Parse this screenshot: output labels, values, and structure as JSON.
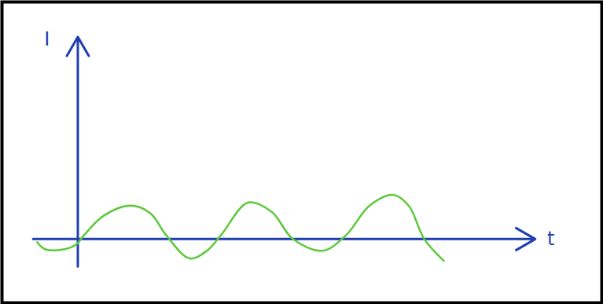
{
  "chart_data": {
    "type": "line",
    "x_label": "t",
    "y_label": "I",
    "x": [
      -52,
      -42,
      -17,
      -2,
      8,
      33,
      68,
      93,
      113,
      143,
      165,
      183,
      218,
      248,
      275,
      313,
      343,
      373,
      403,
      423,
      443,
      468
    ],
    "values": [
      -4,
      -13,
      -13,
      -7,
      5,
      30,
      43,
      33,
      5,
      -25,
      -15,
      5,
      47,
      35,
      0,
      -15,
      5,
      43,
      57,
      43,
      0,
      -28
    ],
    "color": "#5cc93a",
    "xlim": [
      -97,
      670
    ],
    "ylim": [
      -82,
      305
    ],
    "grid": false,
    "tick_labels": false
  }
}
